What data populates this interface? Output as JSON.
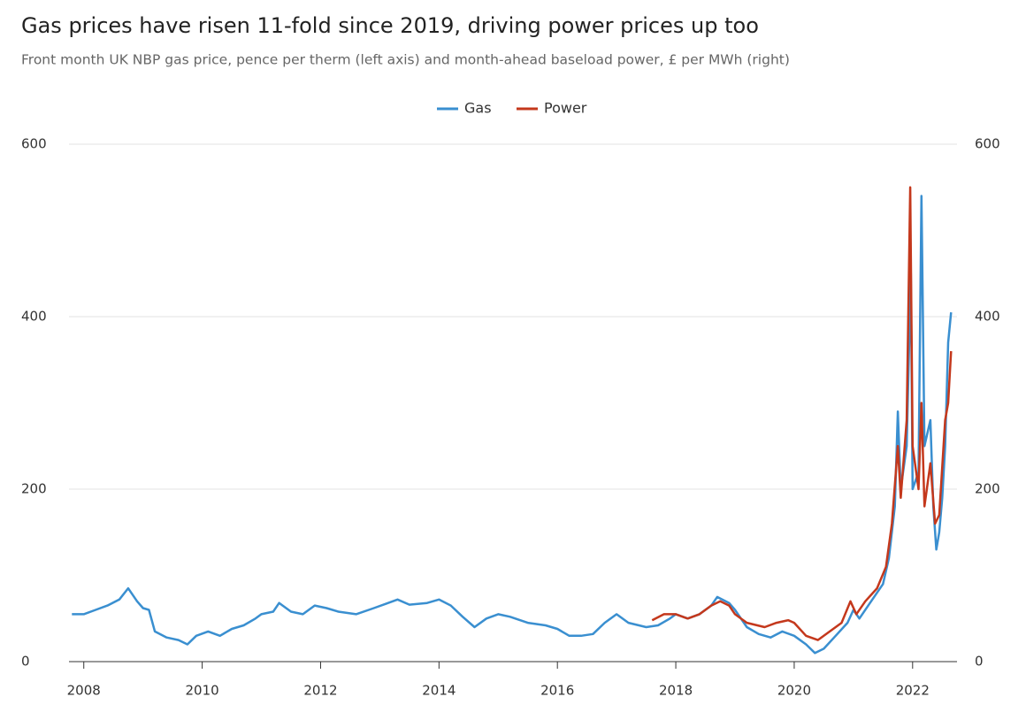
{
  "chart_data": {
    "type": "line",
    "title": "Gas prices have risen 11-fold since 2019, driving power prices up too",
    "subtitle": "Front month UK NBP gas price, pence per therm (left axis) and month-ahead baseload power, £ per MWh (right)",
    "xlim": [
      2007.75,
      2022.75
    ],
    "xticks": [
      2008,
      2010,
      2012,
      2014,
      2016,
      2018,
      2020,
      2022
    ],
    "ylim": [
      0,
      600
    ],
    "yticks": [
      0,
      200,
      400,
      600
    ],
    "y2lim": [
      0,
      600
    ],
    "y2ticks": [
      0,
      200,
      400,
      600
    ],
    "grid": true,
    "legend": "top",
    "series": [
      {
        "name": "Gas",
        "color": "#3a8fd0",
        "axis": "y",
        "x": [
          2007.8,
          2008.0,
          2008.2,
          2008.4,
          2008.6,
          2008.75,
          2008.9,
          2009.0,
          2009.1,
          2009.2,
          2009.4,
          2009.6,
          2009.75,
          2009.9,
          2010.1,
          2010.3,
          2010.5,
          2010.7,
          2010.9,
          2011.0,
          2011.2,
          2011.3,
          2011.5,
          2011.7,
          2011.9,
          2012.1,
          2012.3,
          2012.6,
          2012.9,
          2013.1,
          2013.3,
          2013.5,
          2013.8,
          2014.0,
          2014.2,
          2014.4,
          2014.6,
          2014.8,
          2015.0,
          2015.2,
          2015.5,
          2015.8,
          2016.0,
          2016.2,
          2016.4,
          2016.6,
          2016.8,
          2017.0,
          2017.2,
          2017.5,
          2017.7,
          2017.9,
          2018.0,
          2018.2,
          2018.4,
          2018.6,
          2018.7,
          2018.9,
          2019.0,
          2019.2,
          2019.4,
          2019.6,
          2019.8,
          2020.0,
          2020.2,
          2020.35,
          2020.5,
          2020.7,
          2020.9,
          2021.0,
          2021.1,
          2021.3,
          2021.5,
          2021.6,
          2021.7,
          2021.75,
          2021.8,
          2021.9,
          2021.97,
          2022.0,
          2022.1,
          2022.15,
          2022.2,
          2022.3,
          2022.35,
          2022.4,
          2022.45,
          2022.5,
          2022.55,
          2022.6,
          2022.65
        ],
        "values": [
          55,
          55,
          60,
          65,
          72,
          85,
          70,
          62,
          60,
          35,
          28,
          25,
          20,
          30,
          35,
          30,
          38,
          42,
          50,
          55,
          58,
          68,
          58,
          55,
          65,
          62,
          58,
          55,
          62,
          67,
          72,
          66,
          68,
          72,
          65,
          52,
          40,
          50,
          55,
          52,
          45,
          42,
          38,
          30,
          30,
          32,
          45,
          55,
          45,
          40,
          42,
          50,
          55,
          50,
          55,
          65,
          75,
          68,
          60,
          40,
          32,
          28,
          35,
          30,
          20,
          10,
          15,
          30,
          45,
          60,
          50,
          70,
          90,
          120,
          180,
          290,
          200,
          250,
          450,
          200,
          220,
          540,
          250,
          280,
          180,
          130,
          150,
          190,
          250,
          370,
          405
        ]
      },
      {
        "name": "Power",
        "color": "#c4381c",
        "axis": "y2",
        "x": [
          2017.6,
          2017.8,
          2018.0,
          2018.2,
          2018.4,
          2018.6,
          2018.75,
          2018.9,
          2019.0,
          2019.2,
          2019.5,
          2019.7,
          2019.9,
          2020.0,
          2020.2,
          2020.4,
          2020.6,
          2020.8,
          2020.95,
          2021.05,
          2021.2,
          2021.4,
          2021.55,
          2021.65,
          2021.75,
          2021.8,
          2021.9,
          2021.96,
          2022.0,
          2022.1,
          2022.15,
          2022.2,
          2022.3,
          2022.38,
          2022.45,
          2022.55,
          2022.6,
          2022.65
        ],
        "values": [
          48,
          55,
          55,
          50,
          55,
          65,
          70,
          65,
          55,
          45,
          40,
          45,
          48,
          45,
          30,
          25,
          35,
          45,
          70,
          55,
          70,
          85,
          110,
          160,
          250,
          190,
          280,
          550,
          250,
          200,
          300,
          180,
          230,
          160,
          170,
          280,
          300,
          360
        ]
      }
    ]
  }
}
